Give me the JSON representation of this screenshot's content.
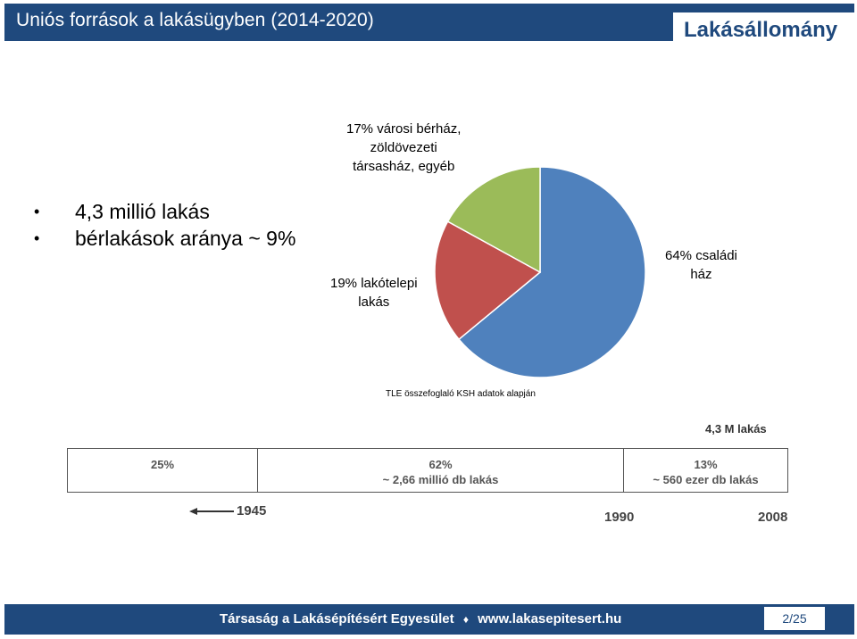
{
  "header": {
    "title": "Uniós források a lakásügyben (2014-2020)",
    "section": "Lakásállomány"
  },
  "bullets": [
    "4,3 millió lakás",
    "bérlakások aránya ~ 9%"
  ],
  "chart_data": {
    "type": "pie",
    "slices": [
      {
        "label": "64% családi ház",
        "value": 64,
        "color": "#4f81bd"
      },
      {
        "label": "19% lakótelepi lakás",
        "value": 19,
        "color": "#c0504d"
      },
      {
        "label": "17% városi bérház, zöldövezeti társasház, egyéb",
        "value": 17,
        "color": "#9bbb59"
      }
    ],
    "labels": {
      "family": [
        "64% családi",
        "ház"
      ],
      "estate": [
        "19% lakótelepi",
        "lakás"
      ],
      "other": [
        "17% városi bérház,",
        "zöldövezeti",
        "társasház, egyéb"
      ]
    },
    "source_note": "TLE összefoglaló KSH adatok alapján"
  },
  "timeline": {
    "total": "4,3 M lakás",
    "segments": [
      {
        "line1": "25%",
        "line2": ""
      },
      {
        "line1": "62%",
        "line2": "~ 2,66 millió db lakás"
      },
      {
        "line1": "13%",
        "line2": "~ 560 ezer db lakás"
      }
    ],
    "years": {
      "y1945": "1945",
      "y1990": "1990",
      "y2008": "2008"
    }
  },
  "footer": {
    "org": "Társaság a Lakásépítésért Egyesület",
    "separator": "♦",
    "url": "www.lakasepitesert.hu",
    "page": "2/25"
  }
}
